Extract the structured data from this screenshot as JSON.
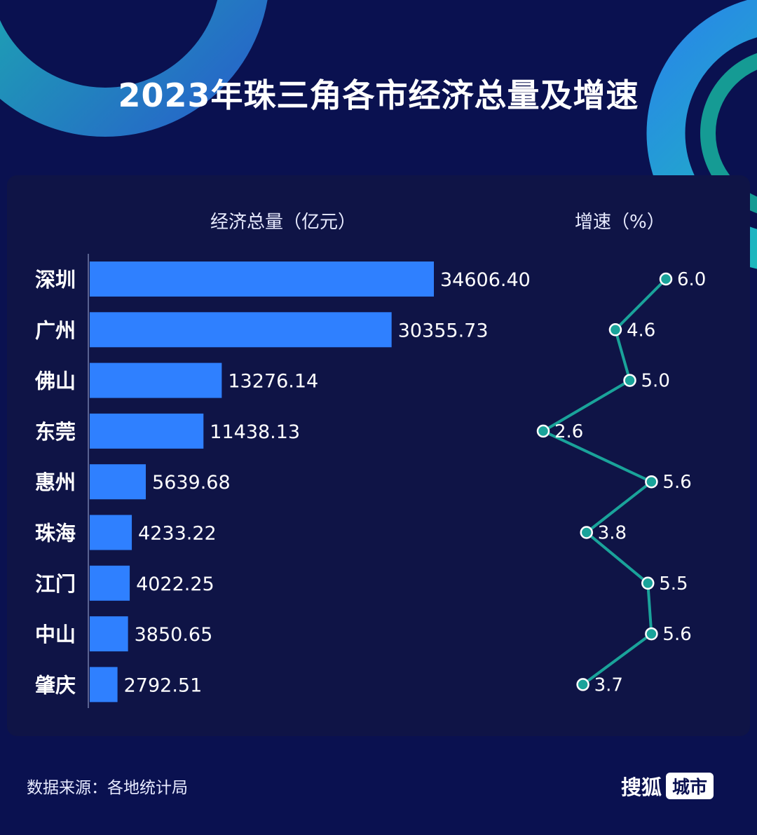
{
  "title": "2023年珠三角各市经济总量及增速",
  "gdp_header": "经济总量（亿元）",
  "growth_header": "增速（%）",
  "source": "数据来源：各地统计局",
  "brand": {
    "main": "搜狐",
    "tag": "城市"
  },
  "colors": {
    "background": "#0a1150",
    "bar": "#2f80ff",
    "line": "#1aa39a",
    "point": "#1aa39a"
  },
  "chart_data": {
    "type": "bar",
    "title": "2023年珠三角各市经济总量及增速",
    "categories": [
      "深圳",
      "广州",
      "佛山",
      "东莞",
      "惠州",
      "珠海",
      "江门",
      "中山",
      "肇庆"
    ],
    "series": [
      {
        "name": "经济总量（亿元）",
        "type": "bar",
        "values": [
          34606.4,
          30355.73,
          13276.14,
          11438.13,
          5639.68,
          4233.22,
          4022.25,
          3850.65,
          2792.51
        ],
        "labels": [
          "34606.40",
          "30355.73",
          "13276.14",
          "11438.13",
          "5639.68",
          "4233.22",
          "4022.25",
          "3850.65",
          "2792.51"
        ]
      },
      {
        "name": "增速（%）",
        "type": "line",
        "values": [
          6.0,
          4.6,
          5.0,
          2.6,
          5.6,
          3.8,
          5.5,
          5.6,
          3.7
        ],
        "labels": [
          "6.0",
          "4.6",
          "5.0",
          "2.6",
          "5.6",
          "3.8",
          "5.5",
          "5.6",
          "3.7"
        ]
      }
    ],
    "orientation": "horizontal",
    "grid": false,
    "legend": "none"
  }
}
